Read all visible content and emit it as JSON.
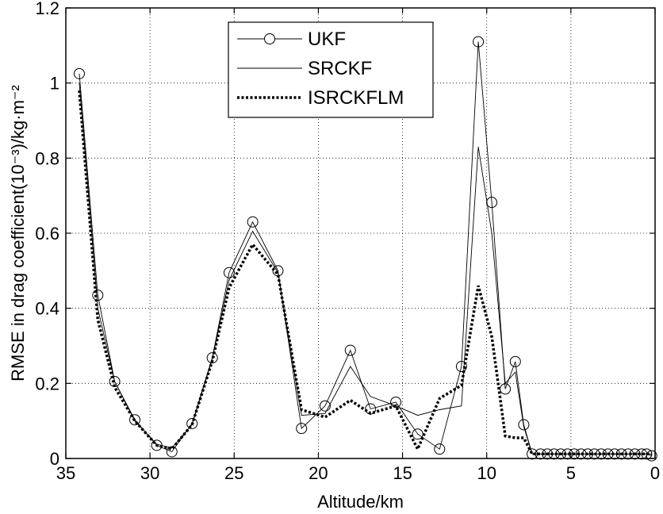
{
  "chart_data": {
    "type": "line",
    "xlabel": "Altitude/km",
    "ylabel": "RMSE in drag coefficient(10⁻³)/kg·m⁻²",
    "xlim": [
      35,
      0
    ],
    "ylim": [
      0,
      1.2
    ],
    "x_reversed": true,
    "xticks": [
      35,
      30,
      25,
      20,
      15,
      10,
      5,
      0
    ],
    "yticks": [
      0,
      0.2,
      0.4,
      0.6,
      0.8,
      1,
      1.2
    ],
    "xtick_labels": [
      "35",
      "30",
      "25",
      "20",
      "15",
      "10",
      "5",
      "0"
    ],
    "ytick_labels": [
      "0",
      "0.2",
      "0.4",
      "0.6",
      "0.8",
      "1",
      "1.2"
    ],
    "grid": true,
    "legend_position": "top-center",
    "series": [
      {
        "name": "UKF",
        "style": "thin-circle",
        "color": "#000000",
        "x": [
          34.2,
          33.1,
          32.1,
          30.9,
          29.6,
          28.7,
          27.5,
          26.3,
          25.3,
          23.9,
          22.4,
          21.0,
          19.6,
          18.1,
          16.9,
          15.4,
          14.1,
          12.8,
          11.5,
          10.5,
          9.7,
          8.9,
          8.3,
          7.8,
          7.3,
          6.8,
          6.4,
          6.0,
          5.6,
          5.2,
          4.8,
          4.4,
          4.0,
          3.6,
          3.2,
          2.8,
          2.4,
          2.0,
          1.6,
          1.2,
          0.8,
          0.5,
          0.2
        ],
        "y": [
          1.025,
          0.435,
          0.205,
          0.103,
          0.035,
          0.018,
          0.093,
          0.268,
          0.495,
          0.63,
          0.5,
          0.08,
          0.14,
          0.288,
          0.132,
          0.15,
          0.065,
          0.025,
          0.245,
          1.11,
          0.682,
          0.185,
          0.258,
          0.09,
          0.012,
          0.012,
          0.012,
          0.012,
          0.012,
          0.012,
          0.012,
          0.012,
          0.012,
          0.012,
          0.012,
          0.012,
          0.012,
          0.012,
          0.012,
          0.012,
          0.012,
          0.012,
          0.007
        ]
      },
      {
        "name": "SRCKF",
        "style": "thin-solid",
        "color": "#000000",
        "x": [
          34.2,
          33.1,
          32.1,
          30.9,
          29.6,
          28.7,
          27.5,
          26.3,
          25.3,
          23.9,
          22.4,
          21.0,
          19.6,
          18.1,
          16.9,
          15.4,
          14.1,
          12.8,
          11.5,
          10.5,
          9.7,
          8.9,
          8.3,
          7.8,
          7.3,
          0.2
        ],
        "y": [
          1.0,
          0.4,
          0.205,
          0.1,
          0.038,
          0.028,
          0.09,
          0.265,
          0.475,
          0.605,
          0.495,
          0.115,
          0.12,
          0.245,
          0.165,
          0.14,
          0.115,
          0.13,
          0.14,
          0.83,
          0.6,
          0.2,
          0.23,
          0.085,
          0.012,
          0.012
        ]
      },
      {
        "name": "ISRCKFLM",
        "style": "dotted",
        "color": "#000000",
        "x": [
          34.2,
          33.1,
          32.1,
          30.9,
          29.6,
          28.7,
          27.5,
          26.3,
          25.3,
          23.9,
          22.4,
          21.0,
          19.6,
          18.1,
          16.9,
          15.4,
          14.1,
          12.8,
          11.5,
          10.5,
          9.7,
          8.9,
          8.3,
          7.8,
          7.3,
          0.2
        ],
        "y": [
          0.98,
          0.37,
          0.19,
          0.1,
          0.035,
          0.025,
          0.09,
          0.26,
          0.455,
          0.57,
          0.49,
          0.13,
          0.11,
          0.155,
          0.12,
          0.14,
          0.025,
          0.16,
          0.195,
          0.46,
          0.325,
          0.06,
          0.055,
          0.055,
          0.012,
          0.012
        ]
      }
    ]
  }
}
